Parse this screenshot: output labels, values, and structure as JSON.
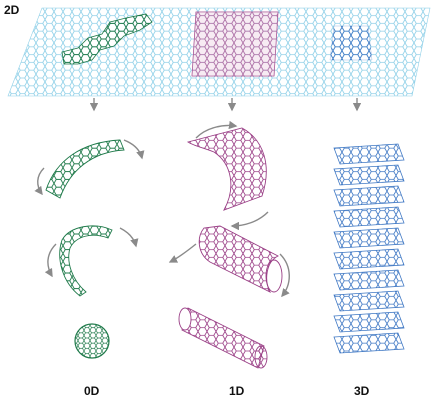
{
  "labels": {
    "two_d": "2D",
    "zero_d": "0D",
    "one_d": "1D",
    "three_d": "3D"
  },
  "colors": {
    "sheet": "#8fd0e8",
    "green": "#1f7a4a",
    "magenta": "#9a3f86",
    "blue": "#3f78c4",
    "arrow": "#8a8a8a"
  },
  "icons": {
    "down_arrow": "down-arrow-icon",
    "curved_arrow": "curved-arrow-icon"
  }
}
